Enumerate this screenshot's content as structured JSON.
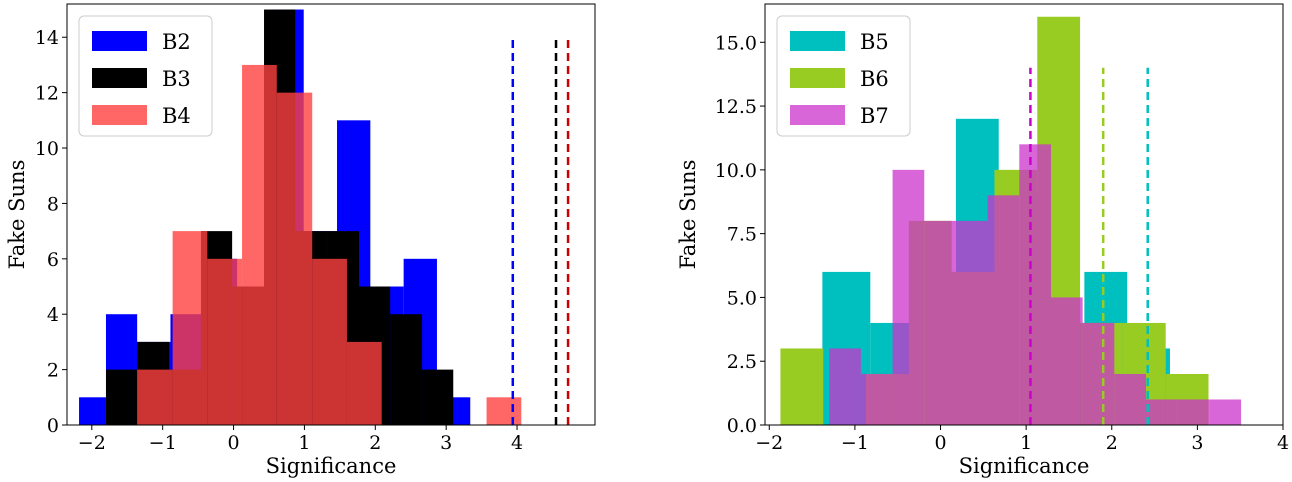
{
  "chart_data": [
    {
      "type": "bar",
      "xlabel": "Significance",
      "ylabel": "Fake Suns",
      "xlim": [
        -2.35,
        5.1
      ],
      "ylim": [
        0,
        15.2
      ],
      "xticks": [
        -2,
        -1,
        0,
        1,
        2,
        3,
        4
      ],
      "yticks": [
        0,
        2,
        4,
        6,
        8,
        10,
        12,
        14
      ],
      "xtick_labels": [
        "−2",
        "−1",
        "0",
        "1",
        "2",
        "3",
        "4"
      ],
      "ytick_labels": [
        "0",
        "2",
        "4",
        "6",
        "8",
        "10",
        "12",
        "14"
      ],
      "legend_placement": "top-left",
      "series": [
        {
          "name": "B2",
          "color": "#0000ff",
          "opacity": 1.0,
          "bin_edges": [
            -2.18,
            -1.8,
            -1.36,
            -0.89,
            -0.42,
            0.05,
            0.52,
            0.99,
            1.46,
            1.93,
            2.4,
            2.87,
            3.34
          ],
          "counts": [
            1,
            4,
            3,
            4,
            6,
            5,
            15,
            7,
            11,
            5,
            6,
            1
          ]
        },
        {
          "name": "B3",
          "color": "#000000",
          "opacity": 1.0,
          "bin_edges": [
            -1.8,
            -1.36,
            -0.91,
            -0.46,
            -0.02,
            0.43,
            0.87,
            1.32,
            1.77,
            2.21,
            2.66,
            3.1,
            3.55
          ],
          "counts": [
            2,
            3,
            2,
            7,
            5,
            15,
            7,
            7,
            5,
            4,
            2,
            0
          ]
        },
        {
          "name": "B4",
          "color": "#ff4040",
          "opacity": 0.8,
          "bin_edges": [
            -1.36,
            -0.86,
            -0.37,
            0.12,
            0.61,
            1.11,
            1.6,
            2.09,
            2.58,
            3.08,
            3.57,
            4.06,
            4.55
          ],
          "counts": [
            2,
            7,
            6,
            13,
            12,
            6,
            3,
            0,
            0,
            0,
            1,
            0
          ]
        }
      ],
      "vlines": [
        {
          "x": 3.94,
          "color": "#0000ff",
          "ymax": 13.9
        },
        {
          "x": 4.55,
          "color": "#000000",
          "ymax": 13.9
        },
        {
          "x": 4.72,
          "color": "#cc0000",
          "ymax": 13.9
        }
      ]
    },
    {
      "type": "bar",
      "xlabel": "Significance",
      "ylabel": "Fake Suns",
      "xlim": [
        -2.05,
        4.0
      ],
      "ylim": [
        0,
        16.5
      ],
      "xticks": [
        -2,
        -1,
        0,
        1,
        2,
        3,
        4
      ],
      "yticks": [
        0,
        2.5,
        5,
        7.5,
        10,
        12.5,
        15
      ],
      "xtick_labels": [
        "−2",
        "−1",
        "0",
        "1",
        "2",
        "3",
        "4"
      ],
      "ytick_labels": [
        "0.0",
        "2.5",
        "5.0",
        "7.5",
        "10.0",
        "12.5",
        "15.0"
      ],
      "legend_placement": "top-left",
      "series": [
        {
          "name": "B5",
          "color": "#00bfbf",
          "opacity": 1.0,
          "bin_edges": [
            -1.38,
            -0.82,
            -0.32,
            0.18,
            0.68,
            1.18,
            1.68,
            2.18,
            2.68
          ],
          "counts": [
            6,
            4,
            6,
            12,
            9,
            4,
            6,
            3
          ]
        },
        {
          "name": "B6",
          "color": "#99cc22",
          "opacity": 1.0,
          "bin_edges": [
            -1.87,
            -1.37,
            -0.87,
            -0.37,
            0.13,
            0.63,
            1.13,
            1.63,
            2.13,
            2.63,
            3.13
          ],
          "counts": [
            3,
            0,
            2,
            8,
            6,
            10,
            16,
            4,
            4,
            2
          ]
        },
        {
          "name": "B7",
          "color": "#cc33cc",
          "opacity": 0.75,
          "bin_edges": [
            -1.3,
            -0.93,
            -0.56,
            -0.19,
            0.18,
            0.55,
            0.92,
            1.29,
            1.66,
            2.03,
            2.4,
            2.77,
            3.14,
            3.51
          ],
          "counts": [
            3,
            2,
            10,
            8,
            8,
            9,
            11,
            5,
            4,
            2,
            1,
            1,
            1
          ]
        }
      ],
      "vlines": [
        {
          "x": 1.05,
          "color": "#cc00cc",
          "ymax": 14.0
        },
        {
          "x": 1.9,
          "color": "#99cc22",
          "ymax": 14.0
        },
        {
          "x": 2.42,
          "color": "#00bfbf",
          "ymax": 14.0
        }
      ]
    }
  ]
}
